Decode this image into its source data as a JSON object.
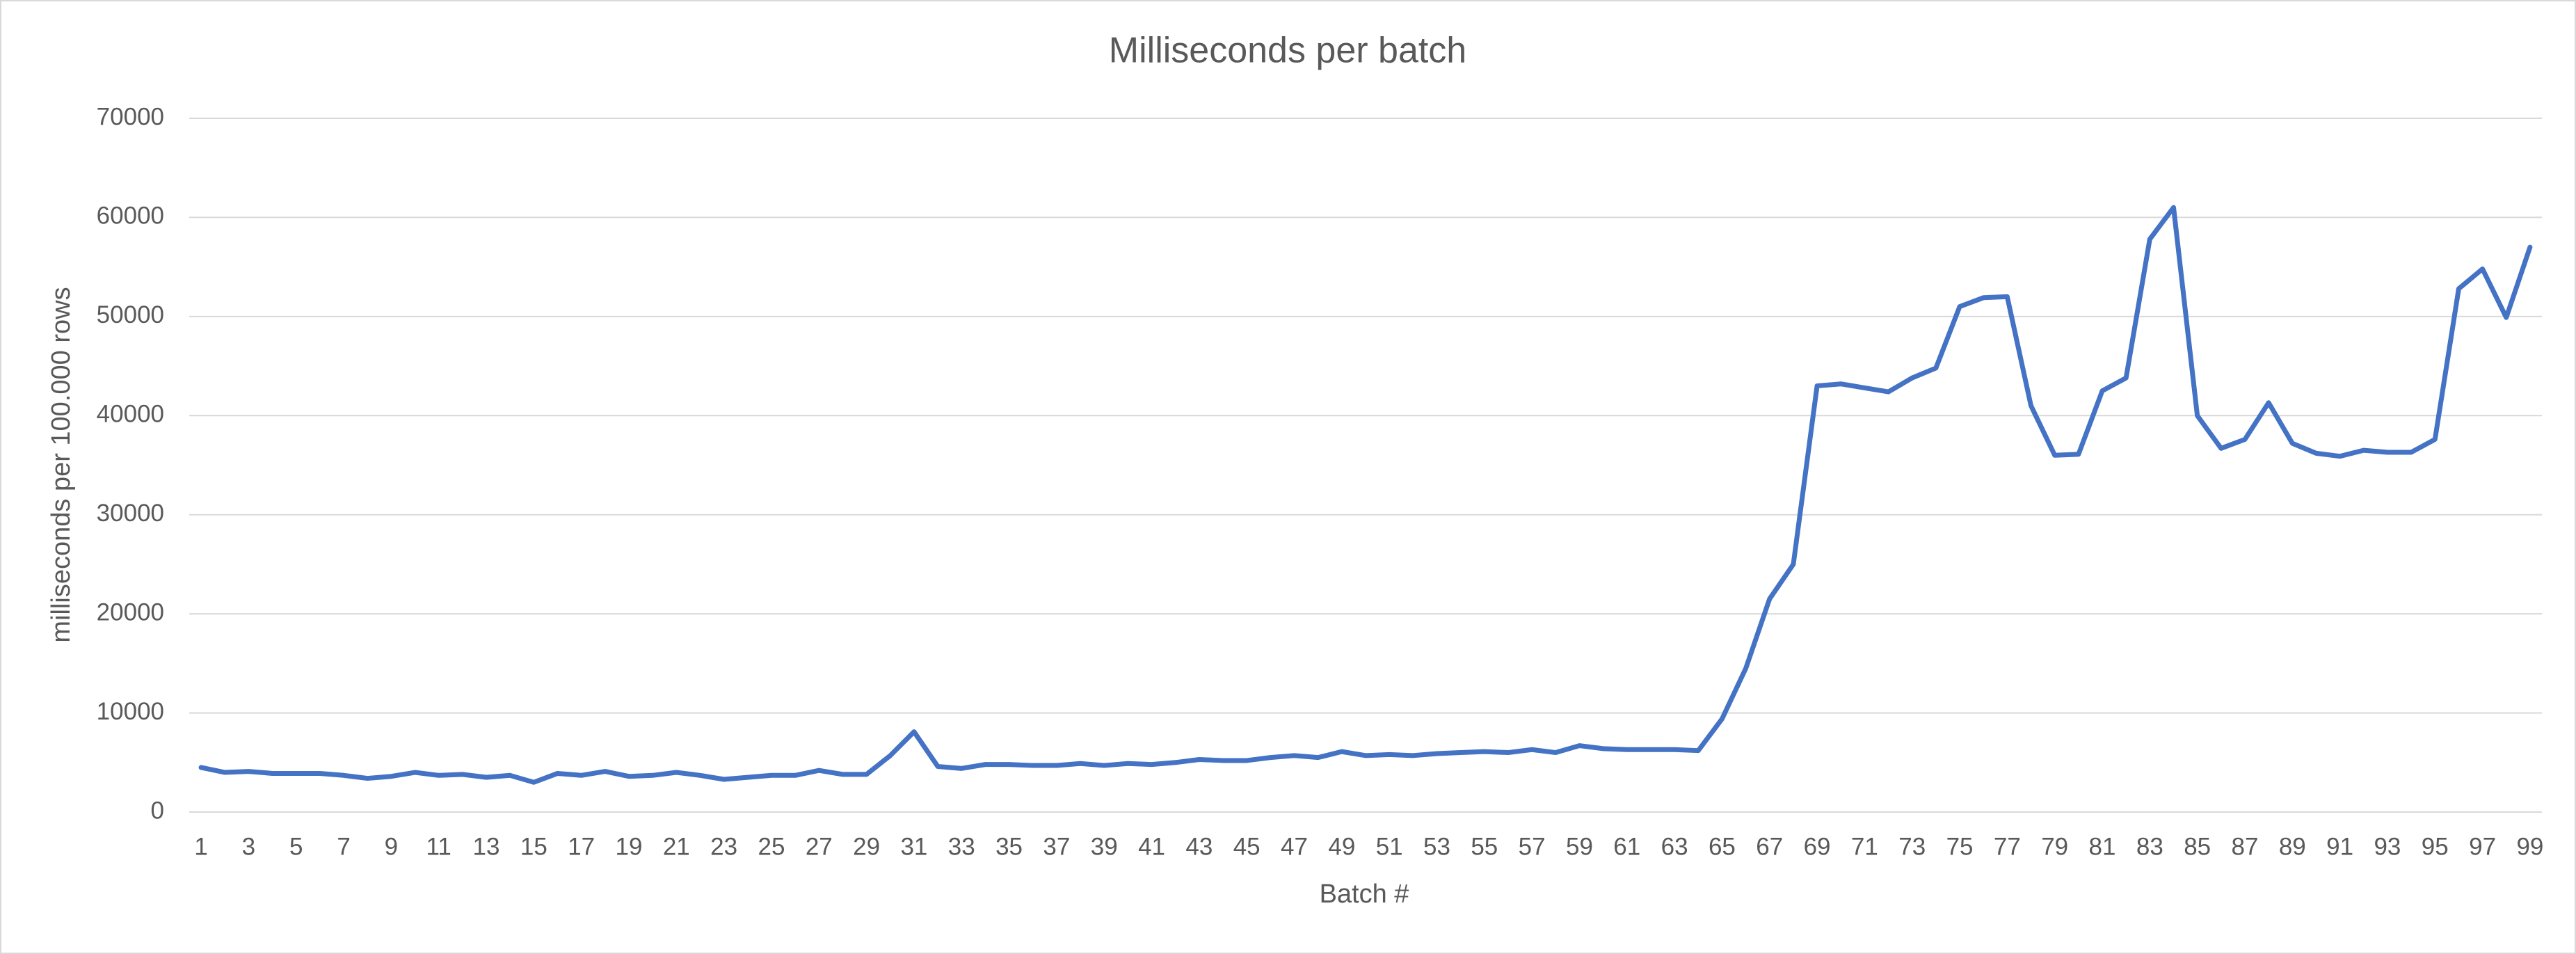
{
  "chart_data": {
    "type": "line",
    "title": "Milliseconds per batch",
    "x_label": "Batch #",
    "y_label": "milliseconds per 100.000 rows",
    "categories": [
      "1",
      null,
      "3",
      null,
      "5",
      null,
      "7",
      null,
      "9",
      null,
      "11",
      null,
      "13",
      null,
      "15",
      null,
      "17",
      null,
      "19",
      null,
      "21",
      null,
      "23",
      null,
      "25",
      null,
      "27",
      null,
      "29",
      null,
      "31",
      null,
      "33",
      null,
      "35",
      null,
      "37",
      null,
      "39",
      null,
      "41",
      null,
      "43",
      null,
      "45",
      null,
      "47",
      null,
      "49",
      null,
      "51",
      null,
      "53",
      null,
      "55",
      null,
      "57",
      null,
      "59",
      null,
      "61",
      null,
      "63",
      null,
      "65",
      null,
      "67",
      null,
      "69",
      null,
      "71",
      null,
      "73",
      null,
      "75",
      null,
      "77",
      null,
      "79",
      null,
      "81",
      null,
      "83",
      null,
      "85",
      null,
      "87",
      null,
      "89",
      null,
      "91",
      null,
      "93",
      null,
      "95",
      null,
      "97",
      null,
      "99"
    ],
    "values": [
      4500,
      4000,
      4100,
      3900,
      3900,
      3900,
      3700,
      3400,
      3600,
      4000,
      3700,
      3800,
      3500,
      3700,
      3000,
      3900,
      3700,
      4100,
      3600,
      3700,
      4000,
      3700,
      3300,
      3500,
      3700,
      3700,
      4200,
      3800,
      3800,
      5700,
      8100,
      4600,
      4400,
      4800,
      4800,
      4700,
      4700,
      4900,
      4700,
      4900,
      4800,
      5000,
      5300,
      5200,
      5200,
      5500,
      5700,
      5500,
      6100,
      5700,
      5800,
      5700,
      5900,
      6000,
      6100,
      6000,
      6300,
      6000,
      6700,
      6400,
      6300,
      6300,
      6300,
      6200,
      9400,
      14500,
      21500,
      25000,
      43000,
      43200,
      42800,
      42400,
      43800,
      44800,
      51000,
      51900,
      52000,
      41000,
      36000,
      36100,
      42500,
      43800,
      57800,
      61000,
      40000,
      36700,
      37600,
      41300,
      37200,
      36200,
      35900,
      36500,
      36300,
      36300,
      37600,
      52800,
      54800,
      49900,
      57000
    ],
    "color": "#4472c4",
    "ylim": [
      0,
      70000
    ],
    "yticks": [
      0,
      10000,
      20000,
      30000,
      40000,
      50000,
      60000,
      70000
    ],
    "grid": true
  }
}
